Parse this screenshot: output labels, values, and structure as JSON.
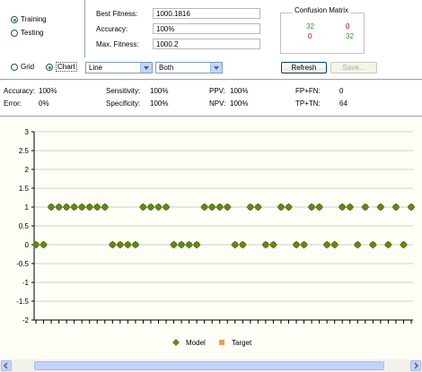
{
  "mode": {
    "options": [
      {
        "label": "Training",
        "checked": true
      },
      {
        "label": "Testing",
        "checked": false
      }
    ]
  },
  "fitness": {
    "best_label": "Best Fitness:",
    "best_value": "1000.1816",
    "accuracy_label": "Accuracy:",
    "accuracy_value": "100%",
    "max_label": "Max. Fitness:",
    "max_value": "1000.2"
  },
  "confusion": {
    "title": "Confusion Matrix",
    "tp": "32",
    "fp": "0",
    "fn": "0",
    "tn": "32"
  },
  "toolbar": {
    "grid_label": "Grid",
    "chart_label": "Chart",
    "chart_type": "Line",
    "series_select": "Both",
    "refresh_label": "Refresh",
    "save_label": "Save..."
  },
  "stats": {
    "accuracy_label": "Accuracy:",
    "accuracy": "100%",
    "error_label": "Error:",
    "error": "0%",
    "sensitivity_label": "Sensitivity:",
    "sensitivity": "100%",
    "specificity_label": "Specificity:",
    "specificity": "100%",
    "ppv_label": "PPV:",
    "ppv": "100%",
    "npv_label": "NPV:",
    "npv": "100%",
    "fpfn_label": "FP+FN:",
    "fpfn": "0",
    "tptn_label": "TP+TN:",
    "tptn": "64"
  },
  "legend": {
    "model": "Model",
    "target": "Target"
  },
  "colors": {
    "model": "#5a8a1e",
    "target": "#e8a24a",
    "accent_green": "#21a121",
    "accent_red": "#c00000"
  },
  "chart_data": {
    "type": "scatter",
    "ylim": [
      -2,
      3
    ],
    "yticks": [
      "3",
      "2.5",
      "2",
      "1.5",
      "1",
      "0.5",
      "0",
      "-0.5",
      "-1",
      "-1.5",
      "-2"
    ],
    "x": [
      1,
      2,
      3,
      4,
      5,
      6,
      7,
      8,
      9,
      10,
      11,
      12,
      13,
      14,
      15,
      16,
      17,
      18,
      19,
      20,
      21,
      22,
      23,
      24,
      25,
      26,
      27,
      28,
      29,
      30,
      31,
      32,
      33,
      34,
      35,
      36,
      37,
      38,
      39,
      40,
      41,
      42,
      43,
      44,
      45,
      46,
      47,
      48,
      49,
      50
    ],
    "series": [
      {
        "name": "Model",
        "values": [
          0,
          0,
          1,
          1,
          1,
          1,
          1,
          1,
          1,
          1,
          0,
          0,
          0,
          0,
          1,
          1,
          1,
          1,
          0,
          0,
          0,
          0,
          1,
          1,
          1,
          1,
          0,
          0,
          1,
          1,
          0,
          0,
          1,
          1,
          0,
          0,
          1,
          1,
          0,
          0,
          1,
          1,
          0,
          1,
          0,
          1,
          0,
          1,
          0,
          1
        ]
      },
      {
        "name": "Target",
        "values": [
          0,
          0,
          1,
          1,
          1,
          1,
          1,
          1,
          1,
          1,
          0,
          0,
          0,
          0,
          1,
          1,
          1,
          1,
          0,
          0,
          0,
          0,
          1,
          1,
          1,
          1,
          0,
          0,
          1,
          1,
          0,
          0,
          1,
          1,
          0,
          0,
          1,
          1,
          0,
          0,
          1,
          1,
          0,
          1,
          0,
          1,
          0,
          1,
          0,
          1
        ]
      }
    ],
    "legend": "bottom-center"
  }
}
